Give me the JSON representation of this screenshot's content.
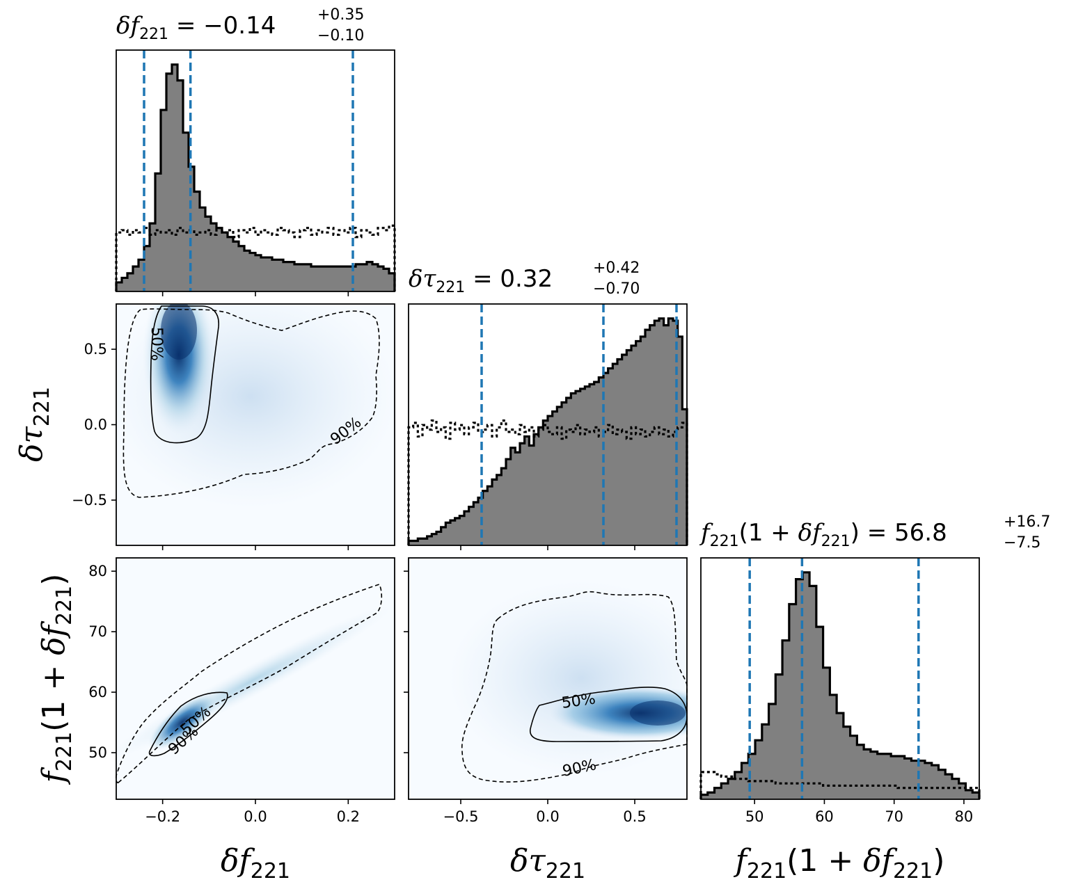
{
  "chart_data": {
    "type": "corner",
    "parameters": [
      {
        "key": "df",
        "range": [
          -0.3,
          0.3
        ],
        "ticks": [
          -0.2,
          0.0,
          0.2
        ],
        "tick_labels": [
          "−0.2",
          "0.0",
          "0.2"
        ]
      },
      {
        "key": "dtau",
        "range": [
          -0.8,
          0.8
        ],
        "ticks": [
          -0.5,
          0.0,
          0.5
        ],
        "tick_labels": [
          "−0.5",
          "0.0",
          "0.5"
        ]
      },
      {
        "key": "f",
        "range": [
          42.3,
          82.2
        ],
        "ticks": [
          50,
          60,
          70,
          80
        ],
        "tick_labels": [
          "50",
          "60",
          "70",
          "80"
        ]
      }
    ],
    "titles": [
      {
        "param": "df",
        "median": "−0.14",
        "plus": "+0.35",
        "minus": "−0.10"
      },
      {
        "param": "dtau",
        "median": "0.32",
        "plus": "+0.42",
        "minus": "−0.70"
      },
      {
        "param": "f",
        "median": "56.8",
        "plus": "+16.7",
        "minus": "−7.5"
      }
    ],
    "quantile_lines": {
      "df": [
        -0.24,
        -0.14,
        0.21
      ],
      "dtau": [
        -0.38,
        0.32,
        0.74
      ],
      "f": [
        49.3,
        56.8,
        73.5
      ]
    },
    "histograms": {
      "df": {
        "min": -0.3,
        "max": 0.3,
        "posterior": [
          0.04,
          0.06,
          0.08,
          0.11,
          0.14,
          0.2,
          0.3,
          0.52,
          0.8,
          0.96,
          1.0,
          0.93,
          0.7,
          0.55,
          0.44,
          0.37,
          0.33,
          0.3,
          0.28,
          0.26,
          0.24,
          0.22,
          0.2,
          0.18,
          0.17,
          0.16,
          0.15,
          0.15,
          0.14,
          0.14,
          0.13,
          0.13,
          0.12,
          0.12,
          0.12,
          0.11,
          0.11,
          0.11,
          0.11,
          0.11,
          0.11,
          0.11,
          0.11,
          0.12,
          0.12,
          0.13,
          0.12,
          0.11,
          0.1,
          0.08
        ],
        "prior": [
          0.26,
          0.27,
          0.25,
          0.27,
          0.26,
          0.28,
          0.25,
          0.27,
          0.26,
          0.27,
          0.25,
          0.28,
          0.26,
          0.27,
          0.25,
          0.26,
          0.27,
          0.25,
          0.28,
          0.26,
          0.27,
          0.24,
          0.27,
          0.26,
          0.28,
          0.25,
          0.27,
          0.26,
          0.25,
          0.28,
          0.27,
          0.26,
          0.24,
          0.27,
          0.28,
          0.25,
          0.27,
          0.26,
          0.28,
          0.25,
          0.27,
          0.26,
          0.28,
          0.24,
          0.27,
          0.26,
          0.25,
          0.28,
          0.27,
          0.29
        ]
      },
      "dtau": {
        "min": -0.8,
        "max": 0.8,
        "posterior": [
          0.02,
          0.02,
          0.03,
          0.03,
          0.04,
          0.05,
          0.06,
          0.08,
          0.1,
          0.11,
          0.12,
          0.13,
          0.15,
          0.17,
          0.19,
          0.21,
          0.24,
          0.26,
          0.29,
          0.31,
          0.34,
          0.38,
          0.43,
          0.41,
          0.45,
          0.48,
          0.44,
          0.49,
          0.52,
          0.55,
          0.57,
          0.59,
          0.61,
          0.63,
          0.65,
          0.67,
          0.68,
          0.69,
          0.7,
          0.71,
          0.72,
          0.74,
          0.76,
          0.78,
          0.8,
          0.82,
          0.84,
          0.86,
          0.88,
          0.9,
          0.92,
          0.95,
          0.97,
          0.99,
          1.0,
          0.97,
          1.0,
          0.99,
          0.92,
          0.6
        ],
        "prior": [
          0.52,
          0.54,
          0.48,
          0.53,
          0.51,
          0.55,
          0.5,
          0.52,
          0.47,
          0.54,
          0.51,
          0.53,
          0.49,
          0.52,
          0.54,
          0.5,
          0.51,
          0.53,
          0.48,
          0.52,
          0.55,
          0.5,
          0.51,
          0.49,
          0.53,
          0.5,
          0.52,
          0.48,
          0.51,
          0.53,
          0.5,
          0.49,
          0.52,
          0.47,
          0.51,
          0.5,
          0.53,
          0.49,
          0.51,
          0.5,
          0.52,
          0.48,
          0.5,
          0.53,
          0.49,
          0.51,
          0.5,
          0.47,
          0.52,
          0.49,
          0.51,
          0.48,
          0.5,
          0.52,
          0.49,
          0.51,
          0.48,
          0.5,
          0.52,
          0.54
        ]
      },
      "f": {
        "min": 42.3,
        "max": 82.2,
        "posterior": [
          0.02,
          0.03,
          0.05,
          0.07,
          0.09,
          0.12,
          0.16,
          0.2,
          0.26,
          0.33,
          0.42,
          0.55,
          0.7,
          0.86,
          0.97,
          1.0,
          0.94,
          0.76,
          0.58,
          0.46,
          0.38,
          0.32,
          0.28,
          0.24,
          0.22,
          0.21,
          0.2,
          0.2,
          0.19,
          0.19,
          0.18,
          0.17,
          0.17,
          0.16,
          0.15,
          0.13,
          0.11,
          0.09,
          0.07,
          0.04,
          0.03
        ],
        "prior": [
          0.12,
          0.12,
          0.11,
          0.1,
          0.1,
          0.09,
          0.09,
          0.08,
          0.08,
          0.08,
          0.08,
          0.07,
          0.07,
          0.07,
          0.07,
          0.07,
          0.07,
          0.07,
          0.06,
          0.06,
          0.06,
          0.06,
          0.06,
          0.06,
          0.06,
          0.06,
          0.06,
          0.06,
          0.06,
          0.05,
          0.05,
          0.05,
          0.05,
          0.05,
          0.05,
          0.05,
          0.05,
          0.05,
          0.05,
          0.05,
          0.05
        ]
      }
    },
    "density_2d": [
      {
        "x": "df",
        "y": "dtau",
        "peak": [
          -0.17,
          0.63
        ],
        "contour_labels": [
          "50%",
          "90%"
        ]
      },
      {
        "x": "df",
        "y": "f",
        "peak": [
          -0.17,
          55
        ],
        "contour_labels": [
          "50%",
          "90%"
        ]
      },
      {
        "x": "dtau",
        "y": "f",
        "peak": [
          0.62,
          56.3
        ],
        "contour_labels": [
          "50%",
          "90%"
        ]
      }
    ],
    "colors": {
      "posterior_fill": "#808080",
      "quantile_line": "#1f77b4",
      "density_high": "#08306b",
      "density_low": "#f7fbff"
    },
    "axis_labels": {
      "x": [
        "df",
        "dtau",
        "f"
      ],
      "y": [
        "dtau",
        "f"
      ]
    }
  }
}
